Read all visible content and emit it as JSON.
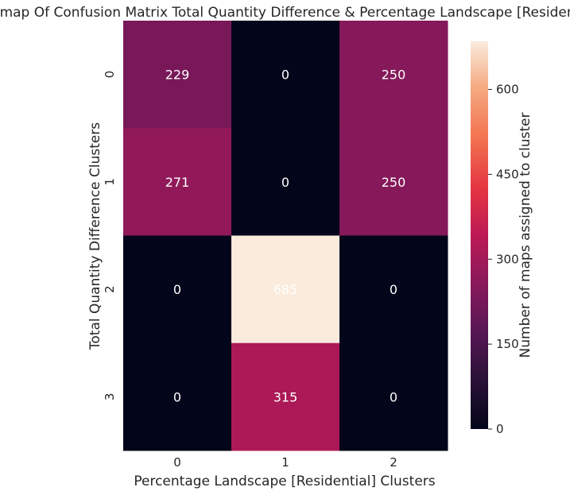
{
  "chart_data": {
    "type": "heatmap",
    "title": "Heatmap Of Confusion Matrix Total Quantity Difference & Percentage Landscape [Residential]",
    "xlabel": "Percentage Landscape [Residential] Clusters",
    "ylabel": "Total Quantity Difference Clusters",
    "x_categories": [
      "0",
      "1",
      "2"
    ],
    "y_categories": [
      "0",
      "1",
      "2",
      "3"
    ],
    "values": [
      [
        229,
        0,
        250
      ],
      [
        271,
        0,
        250
      ],
      [
        0,
        685,
        0
      ],
      [
        0,
        315,
        0
      ]
    ],
    "colorbar": {
      "label": "Number of maps assigned to cluster",
      "range": [
        0,
        685
      ],
      "ticks": [
        0,
        150,
        300,
        450,
        600
      ],
      "colormap": "rocket"
    },
    "cell_text_color": "#ffffff"
  }
}
